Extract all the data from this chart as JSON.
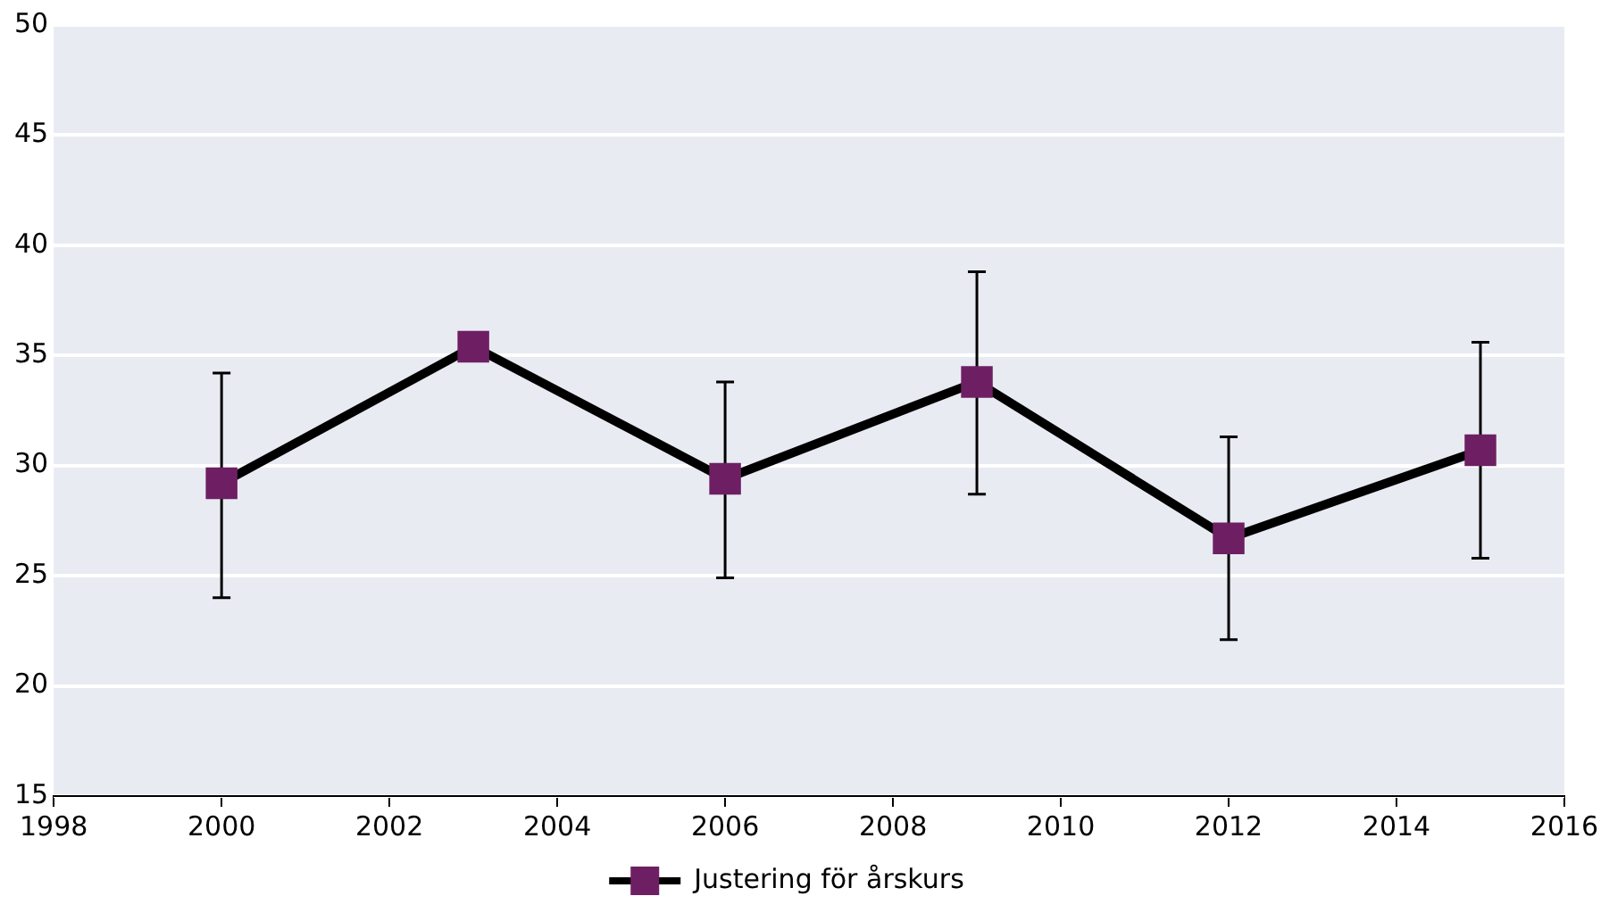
{
  "chart_data": {
    "type": "line",
    "x": [
      2000,
      2003,
      2006,
      2009,
      2012,
      2015
    ],
    "series": [
      {
        "name": "Justering för årskurs",
        "color": "#000000",
        "colors": [
          "#6e1f63",
          "#6e1f63",
          "#6e1f63",
          "#6e1f63",
          "#6e1f63",
          "#6e1f63"
        ],
        "values": [
          29.2,
          35.4,
          29.4,
          33.8,
          26.7,
          30.7
        ],
        "errors": [
          [
            24.0,
            34.2
          ],
          null,
          [
            24.9,
            33.8
          ],
          [
            28.7,
            38.8
          ],
          [
            22.1,
            31.3
          ],
          [
            25.8,
            35.6
          ]
        ]
      }
    ],
    "xlim": [
      1998,
      2016
    ],
    "xticks": [
      1998,
      2000,
      2002,
      2004,
      2006,
      2008,
      2010,
      2012,
      2014,
      2016
    ],
    "ylim": [
      15,
      50
    ],
    "yticks": [
      15,
      20,
      25,
      30,
      35,
      40,
      45,
      50
    ],
    "grid": "y",
    "legend": "bottom",
    "marker": "square",
    "line_style": "solid"
  }
}
